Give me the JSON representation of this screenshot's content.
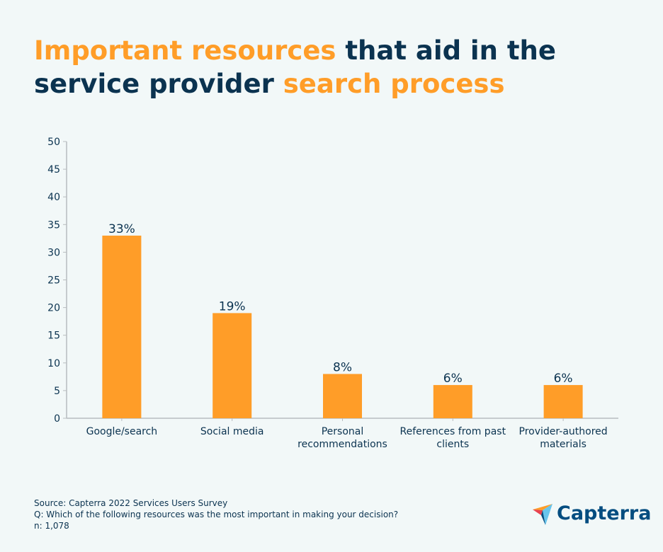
{
  "title": {
    "parts": [
      {
        "text": "Important resources",
        "highlight": true
      },
      {
        "text": " that aid in the service provider ",
        "highlight": false
      },
      {
        "text": "search process",
        "highlight": true
      }
    ]
  },
  "colors": {
    "bar": "#ff9d28",
    "text": "#0b3350",
    "highlight": "#ff9d28",
    "axis": "#b8bcbf"
  },
  "chart_data": {
    "type": "bar",
    "categories": [
      [
        "Google/search"
      ],
      [
        "Social media"
      ],
      [
        "Personal",
        "recommendations"
      ],
      [
        "References from past",
        "clients"
      ],
      [
        "Provider-authored",
        "materials"
      ]
    ],
    "values": [
      33,
      19,
      8,
      6,
      6
    ],
    "data_labels": [
      "33%",
      "19%",
      "8%",
      "6%",
      "6%"
    ],
    "ylim": [
      0,
      50
    ],
    "yticks": [
      0,
      5,
      10,
      15,
      20,
      25,
      30,
      35,
      40,
      45,
      50
    ],
    "grid": false,
    "xlabel": "",
    "ylabel": ""
  },
  "footer": {
    "source": "Source: Capterra 2022 Services Users Survey",
    "question": "Q: Which of the following resources was the most important in making your decision?",
    "n": "n: 1,078"
  },
  "logo": {
    "text": "Capterra"
  }
}
